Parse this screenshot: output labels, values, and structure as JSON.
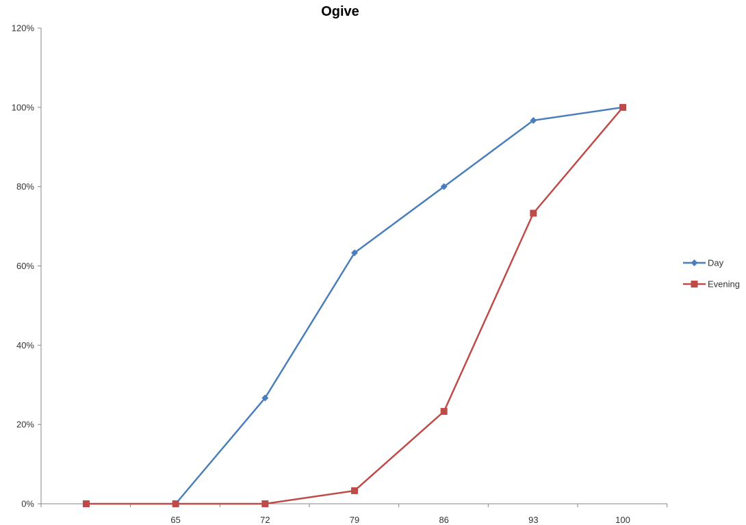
{
  "chart_data": {
    "type": "line",
    "title": "Ogive",
    "xlabel": "",
    "ylabel": "",
    "categories": [
      "",
      "65",
      "72",
      "79",
      "86",
      "93",
      "100"
    ],
    "y_ticks": [
      "0%",
      "20%",
      "40%",
      "60%",
      "80%",
      "100%",
      "120%"
    ],
    "ylim": [
      0,
      1.2
    ],
    "grid": false,
    "legend_position": "right",
    "series": [
      {
        "name": "Day",
        "color": "#4A7EBB",
        "marker": "diamond",
        "values": [
          null,
          0,
          0.267,
          0.633,
          0.8,
          0.967,
          1.0
        ]
      },
      {
        "name": "Evening",
        "color": "#BE4B48",
        "marker": "square",
        "values": [
          0,
          0,
          0,
          0.033,
          0.233,
          0.733,
          1.0
        ]
      }
    ]
  }
}
